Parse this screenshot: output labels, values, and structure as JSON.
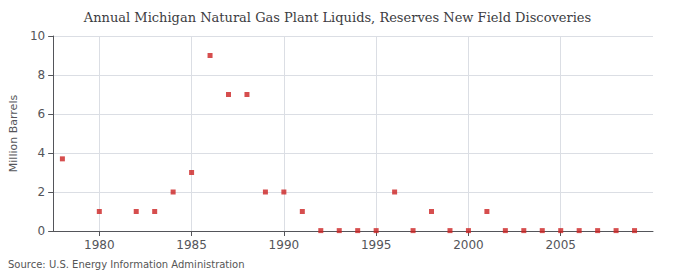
{
  "chart_data": {
    "type": "scatter",
    "title": "Annual Michigan Natural Gas Plant Liquids, Reserves New Field Discoveries",
    "ylabel": "Million Barrels",
    "annotation": "Source: U.S. Energy Information Administration",
    "x": [
      1978,
      1980,
      1982,
      1983,
      1984,
      1985,
      1986,
      1987,
      1988,
      1989,
      1990,
      1991,
      1992,
      1993,
      1994,
      1995,
      1996,
      1997,
      1998,
      1999,
      2000,
      2001,
      2002,
      2003,
      2004,
      2005,
      2006,
      2007,
      2008,
      2009
    ],
    "values": [
      3.7,
      1.0,
      1.0,
      1.0,
      2.0,
      3.0,
      9.0,
      7.0,
      7.0,
      2.0,
      2.0,
      1.0,
      0.02,
      0.02,
      0.02,
      0.02,
      2.0,
      0.02,
      1.0,
      0.02,
      0.02,
      1.0,
      0.02,
      0.02,
      0.02,
      0.02,
      0.02,
      0.02,
      0.02,
      0.02
    ],
    "color": "#cc2222",
    "marker": "square",
    "xlim": [
      1977.5,
      2010
    ],
    "xticks": [
      1980,
      1985,
      1990,
      1995,
      2000,
      2005
    ],
    "ylim": [
      0,
      10
    ],
    "yticks": [
      0,
      2,
      4,
      6,
      8,
      10
    ],
    "grid": true
  }
}
